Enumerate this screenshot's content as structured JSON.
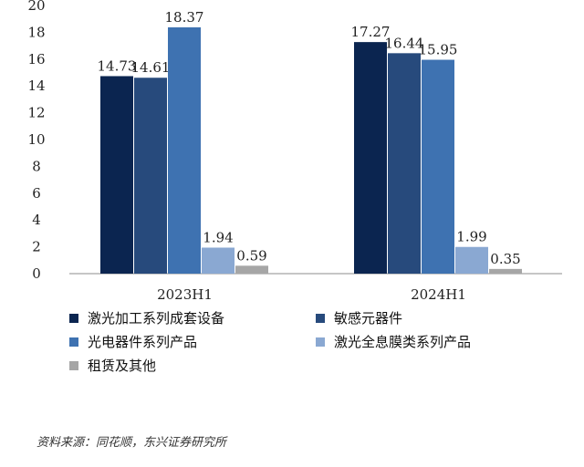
{
  "chart_data": {
    "type": "bar",
    "categories": [
      "2023H1",
      "2024H1"
    ],
    "series": [
      {
        "name": "激光加工系列成套设备",
        "values": [
          14.73,
          17.27
        ],
        "color": "#0b2550"
      },
      {
        "name": "敏感元器件",
        "values": [
          14.61,
          16.44
        ],
        "color": "#274a7c"
      },
      {
        "name": "光电器件系列产品",
        "values": [
          18.37,
          15.95
        ],
        "color": "#3e72b1"
      },
      {
        "name": "激光全息膜类系列产品",
        "values": [
          1.94,
          1.99
        ],
        "color": "#8aa8d2"
      },
      {
        "name": "租赁及其他",
        "values": [
          0.59,
          0.35
        ],
        "color": "#a6a6a6"
      }
    ],
    "value_labels": [
      [
        "14.73",
        "17.27"
      ],
      [
        "14.61",
        "16.44"
      ],
      [
        "18.37",
        "15.95"
      ],
      [
        "1.94",
        "1.99"
      ],
      [
        "0.59",
        "0.35"
      ]
    ],
    "yticks": [
      "0",
      "2",
      "4",
      "6",
      "8",
      "10",
      "12",
      "14",
      "16",
      "18",
      "20"
    ],
    "ylim": [
      0,
      20
    ],
    "grid": false,
    "legend_position": "bottom",
    "title": "",
    "xlabel": "",
    "ylabel": ""
  },
  "source_note": "资料来源：同花顺，东兴证券研究所"
}
